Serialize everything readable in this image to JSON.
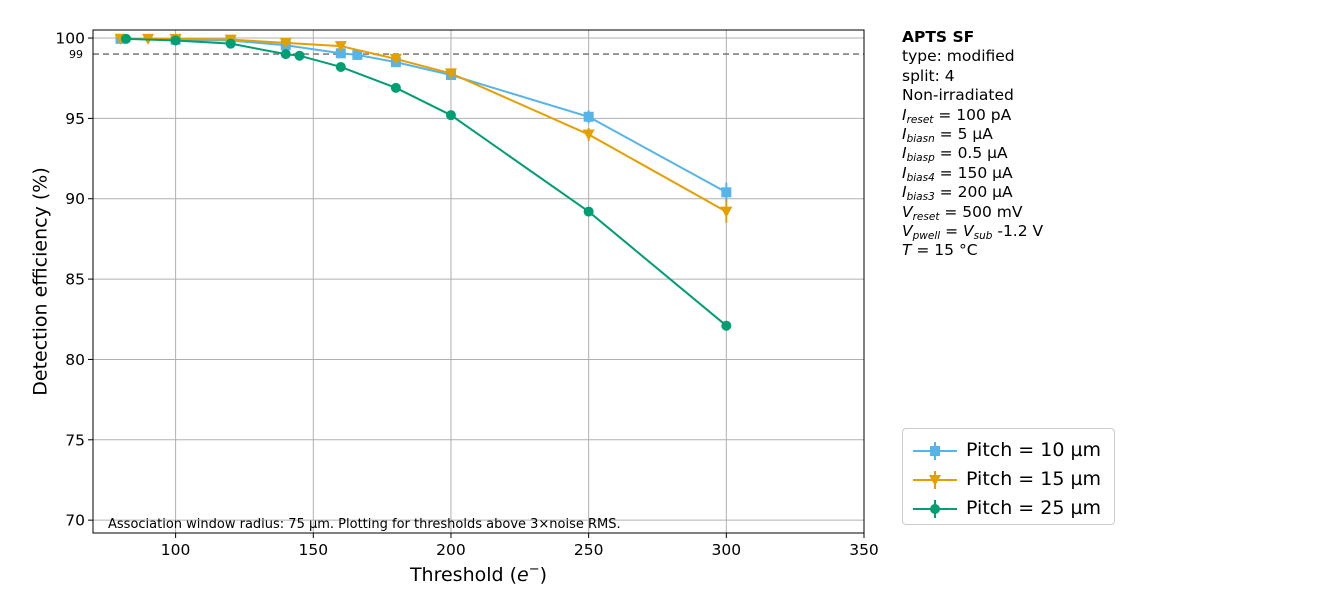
{
  "chart_data": {
    "type": "line",
    "xlabel": "Threshold",
    "xlabel_symbol": "e",
    "xlabel_sup": "−",
    "ylabel": "Detection efficiency (%)",
    "xlim": [
      70,
      350
    ],
    "ylim": [
      69.2,
      100.5
    ],
    "xticks": [
      100,
      150,
      200,
      250,
      300,
      350
    ],
    "yticks": [
      70,
      75,
      80,
      85,
      90,
      95,
      100
    ],
    "grid": true,
    "reference_line": {
      "y": 99,
      "label": "99",
      "color": "#808080",
      "style": "dashed"
    },
    "annotation": "Association window radius: 75 µm. Plotting for thresholds above 3×noise RMS.",
    "legend_position": "lower-right outside",
    "series": [
      {
        "name": "Pitch = 10 µm",
        "color": "#56b4e9",
        "marker": "square",
        "x": [
          80,
          100,
          120,
          140,
          160,
          166,
          180,
          200,
          250,
          300
        ],
        "y": [
          99.95,
          99.9,
          99.85,
          99.55,
          99.05,
          98.95,
          98.5,
          97.7,
          95.1,
          90.4
        ],
        "yerr": [
          0.05,
          0.05,
          0.05,
          0.1,
          0.1,
          0.1,
          0.15,
          0.2,
          0.4,
          0.6
        ]
      },
      {
        "name": "Pitch = 15 µm",
        "color": "#e69f00",
        "marker": "triangle-down",
        "x": [
          80,
          90,
          100,
          120,
          140,
          160,
          180,
          200,
          250,
          300
        ],
        "y": [
          99.95,
          99.95,
          99.95,
          99.9,
          99.7,
          99.5,
          98.7,
          97.8,
          94.0,
          89.2
        ],
        "yerr": [
          0.05,
          0.05,
          0.05,
          0.05,
          0.1,
          0.1,
          0.15,
          0.2,
          0.4,
          0.7
        ]
      },
      {
        "name": "Pitch = 25 µm",
        "color": "#009e73",
        "marker": "circle",
        "x": [
          82,
          100,
          120,
          140,
          145,
          160,
          180,
          200,
          250,
          300
        ],
        "y": [
          99.95,
          99.85,
          99.65,
          99.0,
          98.9,
          98.2,
          96.9,
          95.2,
          89.2,
          82.1
        ],
        "yerr": [
          0.05,
          0.05,
          0.05,
          0.1,
          0.1,
          0.1,
          0.1,
          0.15,
          0.2,
          0.3
        ]
      }
    ]
  },
  "info": {
    "title": "APTS SF",
    "type_line": "type: modified",
    "split_line": "split:  4",
    "irradiation": "Non-irradiated",
    "params": [
      {
        "sym": "I",
        "sub": "reset",
        "val": " = 100 pA"
      },
      {
        "sym": "I",
        "sub": "biasn",
        "val": " = 5 µA"
      },
      {
        "sym": "I",
        "sub": "biasp",
        "val": " = 0.5 µA"
      },
      {
        "sym": "I",
        "sub": "bias4",
        "val": " = 150 µA"
      },
      {
        "sym": "I",
        "sub": "bias3",
        "val": " = 200 µA"
      },
      {
        "sym": "V",
        "sub": "reset",
        "val": " = 500 mV"
      }
    ],
    "pwell_sym": "V",
    "pwell_sub": "pwell",
    "pwell_eq": " = ",
    "sub_sym": "V",
    "sub_sub": "sub",
    "pwell_val": " -1.2 V",
    "temp_sym": "T",
    "temp_val": " = 15 °C"
  }
}
